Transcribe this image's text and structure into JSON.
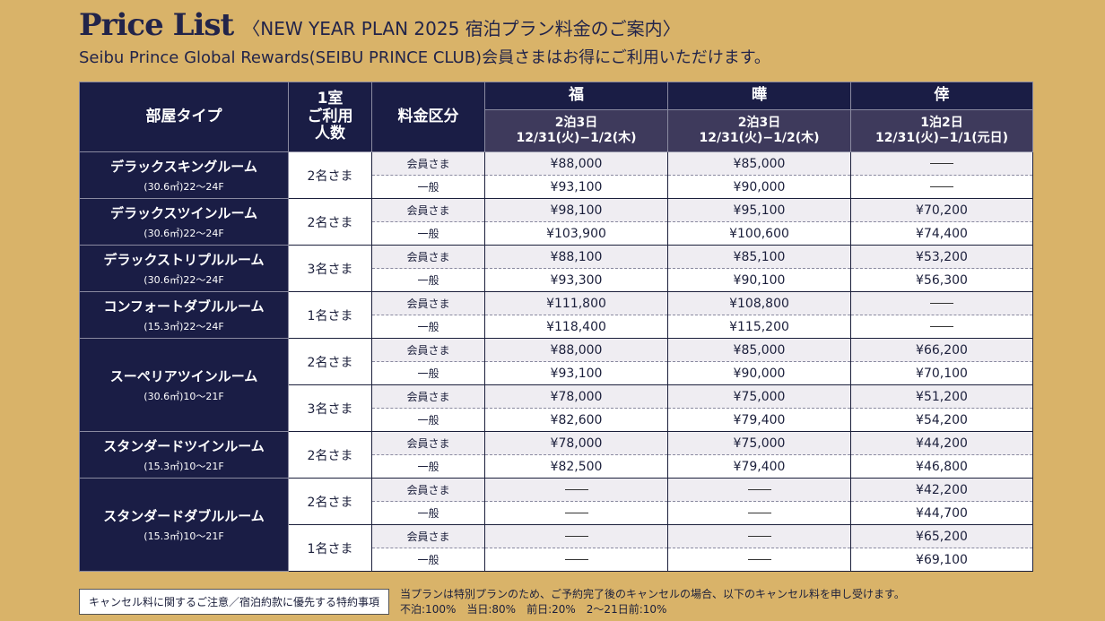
{
  "header": {
    "title": "Price List",
    "title_sub": "〈NEW YEAR PLAN 2025 宿泊プラン料金のご案内〉",
    "subtitle": "Seibu Prince Global Rewards(SEIBU PRINCE CLUB)会員さまはお得にご利用いただけます。"
  },
  "table": {
    "col_room": "部屋タイプ",
    "col_people": "1室\nご利用\n人数",
    "col_rate": "料金区分",
    "plans": [
      {
        "symbol": "福",
        "nights": "2泊3日",
        "dates": "12/31(火)−1/2(木)"
      },
      {
        "symbol": "曄",
        "nights": "2泊3日",
        "dates": "12/31(火)−1/2(木)"
      },
      {
        "symbol": "倖",
        "nights": "1泊2日",
        "dates": "12/31(火)−1/1(元日)"
      }
    ],
    "member_label": "会員さま",
    "general_label": "一般",
    "rooms": [
      {
        "name": "デラックスキングルーム",
        "spec": "(30.6㎡)22〜24F",
        "groups": [
          {
            "people": "2名さま",
            "member": [
              "¥88,000",
              "¥85,000",
              "—"
            ],
            "general": [
              "¥93,100",
              "¥90,000",
              "—"
            ]
          }
        ]
      },
      {
        "name": "デラックスツインルーム",
        "spec": "(30.6㎡)22〜24F",
        "groups": [
          {
            "people": "2名さま",
            "member": [
              "¥98,100",
              "¥95,100",
              "¥70,200"
            ],
            "general": [
              "¥103,900",
              "¥100,600",
              "¥74,400"
            ]
          }
        ]
      },
      {
        "name": "デラックストリプルルーム",
        "spec": "(30.6㎡)22〜24F",
        "groups": [
          {
            "people": "3名さま",
            "member": [
              "¥88,100",
              "¥85,100",
              "¥53,200"
            ],
            "general": [
              "¥93,300",
              "¥90,100",
              "¥56,300"
            ]
          }
        ]
      },
      {
        "name": "コンフォートダブルルーム",
        "spec": "(15.3㎡)22〜24F",
        "groups": [
          {
            "people": "1名さま",
            "member": [
              "¥111,800",
              "¥108,800",
              "—"
            ],
            "general": [
              "¥118,400",
              "¥115,200",
              "—"
            ]
          }
        ]
      },
      {
        "name": "スーペリアツインルーム",
        "spec": "(30.6㎡)10〜21F",
        "groups": [
          {
            "people": "2名さま",
            "member": [
              "¥88,000",
              "¥85,000",
              "¥66,200"
            ],
            "general": [
              "¥93,100",
              "¥90,000",
              "¥70,100"
            ]
          },
          {
            "people": "3名さま",
            "member": [
              "¥78,000",
              "¥75,000",
              "¥51,200"
            ],
            "general": [
              "¥82,600",
              "¥79,400",
              "¥54,200"
            ]
          }
        ]
      },
      {
        "name": "スタンダードツインルーム",
        "spec": "(15.3㎡)10〜21F",
        "groups": [
          {
            "people": "2名さま",
            "member": [
              "¥78,000",
              "¥75,000",
              "¥44,200"
            ],
            "general": [
              "¥82,500",
              "¥79,400",
              "¥46,800"
            ]
          }
        ]
      },
      {
        "name": "スタンダードダブルルーム",
        "spec": "(15.3㎡)10〜21F",
        "groups": [
          {
            "people": "2名さま",
            "member": [
              "—",
              "—",
              "¥42,200"
            ],
            "general": [
              "—",
              "—",
              "¥44,700"
            ]
          },
          {
            "people": "1名さま",
            "member": [
              "—",
              "—",
              "¥65,200"
            ],
            "general": [
              "—",
              "—",
              "¥69,100"
            ]
          }
        ]
      }
    ]
  },
  "footer": {
    "box_label": "キャンセル料に関するご注意／宿泊約款に優先する特約事項",
    "line1": "当プランは特別プランのため、ご予約完了後のキャンセルの場合、以下のキャンセル料を申し受けます。",
    "line2": "不泊:100%　当日:80%　前日:20%　2〜21日前:10%"
  },
  "colors": {
    "background": "#d9b369",
    "navy": "#1a1d45",
    "plan_sub": "#3e3a5c",
    "member_row": "#efedf2"
  }
}
